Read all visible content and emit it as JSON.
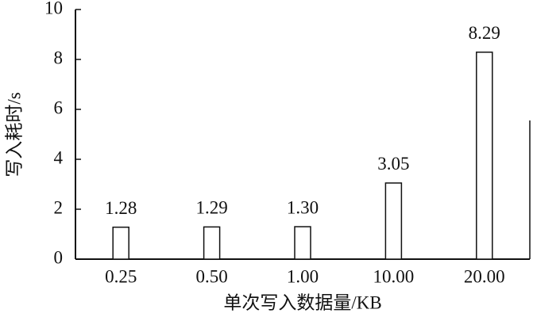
{
  "chart_data": {
    "type": "bar",
    "x_label": "单次写入数据量/KB",
    "y_label": "写入耗时/s",
    "categories": [
      "0.25",
      "0.50",
      "1.00",
      "10.00",
      "20.00"
    ],
    "values": [
      1.28,
      1.29,
      1.3,
      3.05,
      8.29
    ],
    "value_labels": [
      "1.28",
      "1.29",
      "1.30",
      "3.05",
      "8.29"
    ],
    "color": "#ffffff",
    "ylim": [
      0,
      10
    ],
    "yticks": [
      0,
      2,
      4,
      6,
      8,
      10
    ],
    "grid": false
  }
}
